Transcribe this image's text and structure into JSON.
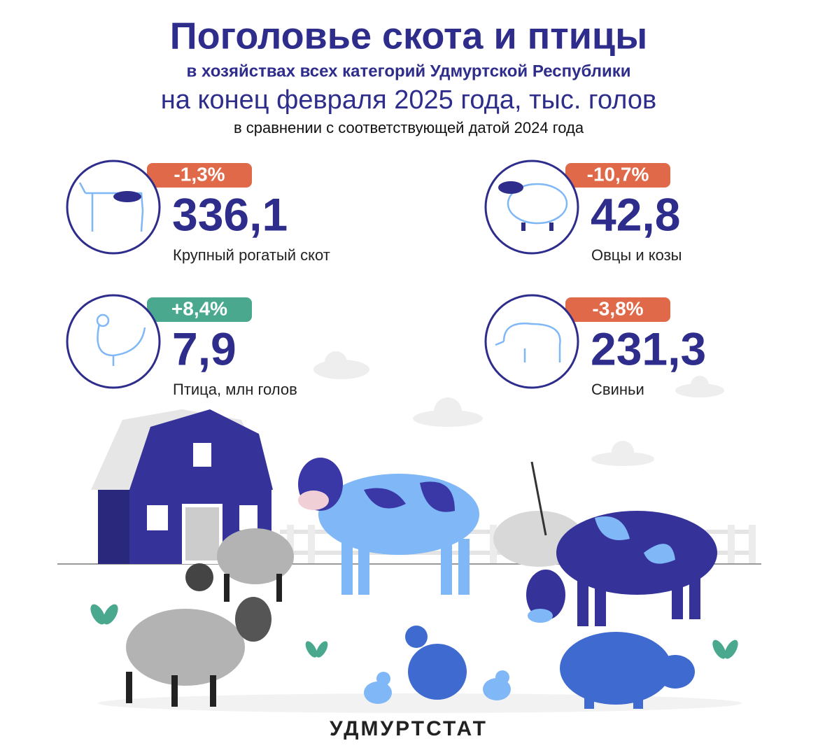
{
  "header": {
    "title": "Поголовье скота и птицы",
    "line1": "в хозяйствах всех категорий Удмуртской Республики",
    "line2": "на конец февраля 2025 года, тыс. голов",
    "line3": "в сравнении с соответствующей датой 2024 года"
  },
  "items": [
    {
      "change": "-1,3%",
      "value": "336,1",
      "label": "Крупный рогатый скот"
    },
    {
      "change": "-10,7%",
      "value": "42,8",
      "label": "Овцы и козы"
    },
    {
      "change": "+8,4%",
      "value": "7,9",
      "label": "Птица, млн голов"
    },
    {
      "change": "-3,8%",
      "value": "231,3",
      "label": "Свиньи"
    }
  ],
  "footer": "УДМУРТСТАТ"
}
